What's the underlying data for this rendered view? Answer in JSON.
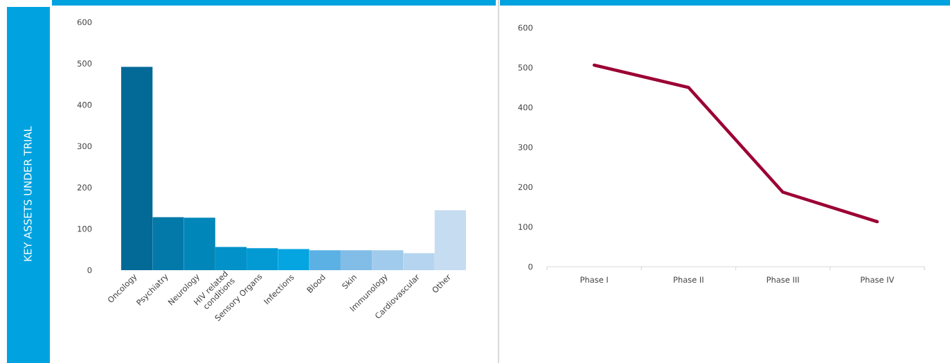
{
  "chart_data": [
    {
      "type": "bar",
      "ylabel": "KEY ASSETS UNDER TRIAL",
      "categories": [
        "Oncology",
        "Psychiatry",
        "Neurology",
        "HIV related conditions",
        "Sensory Organs",
        "Infections",
        "Blood",
        "Skin",
        "Immunology",
        "Cardiovascular",
        "Other"
      ],
      "values": [
        492,
        128,
        127,
        56,
        53,
        51,
        48,
        48,
        48,
        41,
        145
      ],
      "colors": [
        "#036a97",
        "#0279a9",
        "#0186b9",
        "#0291c8",
        "#039ad4",
        "#04a5e0",
        "#5cb1e4",
        "#82bde8",
        "#a0cbec",
        "#b4d4ef",
        "#c6dcf1"
      ],
      "ylim": [
        0,
        600
      ],
      "yticks": [
        0,
        100,
        200,
        300,
        400,
        500,
        600
      ]
    },
    {
      "type": "line",
      "categories": [
        "Phase I",
        "Phase II",
        "Phase III",
        "Phase IV"
      ],
      "values": [
        506,
        450,
        187,
        113
      ],
      "color": "#9b0034",
      "ylim": [
        0,
        600
      ],
      "yticks": [
        0,
        100,
        200,
        300,
        400,
        500,
        600
      ]
    }
  ]
}
